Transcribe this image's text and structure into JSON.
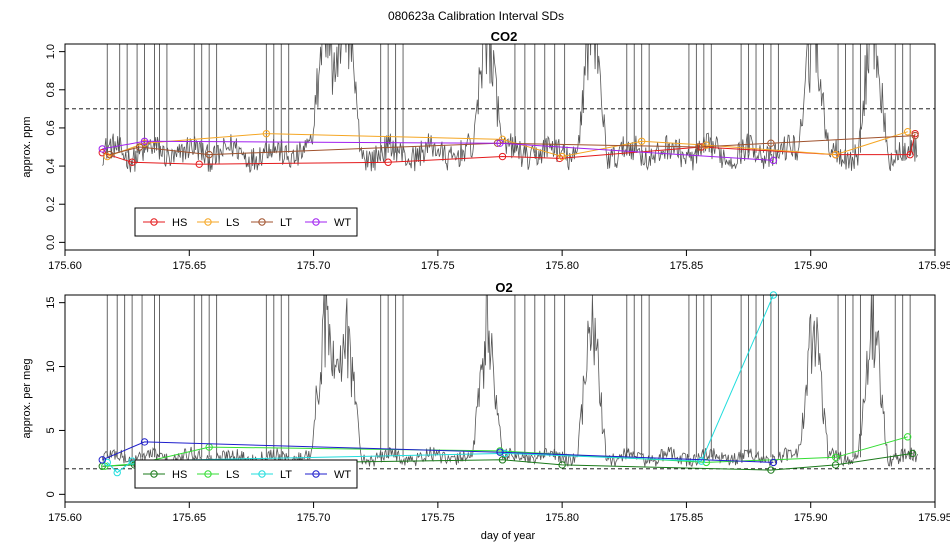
{
  "suptitle": "080623a   Calibration Interval SDs",
  "chart_data": [
    {
      "type": "line",
      "title": "CO2",
      "ylabel": "approx. ppm",
      "xlabel": "",
      "xlim": [
        175.6,
        175.95
      ],
      "ylim": [
        -0.04,
        1.04
      ],
      "xticks": [
        "175.60",
        "175.65",
        "175.70",
        "175.75",
        "175.80",
        "175.85",
        "175.90",
        "175.95"
      ],
      "yticks": [
        "0.0",
        "0.2",
        "0.4",
        "0.6",
        "0.8",
        "1.0"
      ],
      "threshold": 0.7,
      "grey_trace": {
        "color": "#555555",
        "x_start": 175.615,
        "x_end": 175.943,
        "base": 0.47,
        "noise": 0.07,
        "spikes": [
          175.617,
          175.622,
          175.625,
          175.629,
          175.632,
          175.636,
          175.638,
          175.641,
          175.652,
          175.655,
          175.658,
          175.661,
          175.681,
          175.684,
          175.687,
          175.69,
          175.727,
          175.73,
          175.733,
          175.736,
          175.781,
          175.785,
          175.789,
          175.793,
          175.797,
          175.801,
          175.826,
          175.829,
          175.832,
          175.835,
          175.851,
          175.854,
          175.857,
          175.86,
          175.872,
          175.875,
          175.878,
          175.881,
          175.884,
          175.887,
          175.911,
          175.914,
          175.917,
          175.92,
          175.934,
          175.937,
          175.94
        ],
        "bursts": [
          175.705,
          175.713,
          175.77,
          175.812,
          175.901,
          175.925
        ]
      },
      "series": [
        {
          "name": "HS",
          "color": "#e41a1c",
          "x": [
            175.615,
            175.627,
            175.654,
            175.73,
            175.776,
            175.799,
            175.856,
            175.91,
            175.94,
            175.942
          ],
          "y": [
            0.47,
            0.42,
            0.41,
            0.42,
            0.45,
            0.44,
            0.5,
            0.46,
            0.46,
            0.57
          ]
        },
        {
          "name": "LS",
          "color": "#f5a623",
          "x": [
            175.617,
            175.632,
            175.681,
            175.776,
            175.8,
            175.832,
            175.858,
            175.91,
            175.939
          ],
          "y": [
            0.45,
            0.52,
            0.57,
            0.54,
            0.45,
            0.53,
            0.51,
            0.46,
            0.58
          ]
        },
        {
          "name": "LT",
          "color": "#a0522d",
          "x": [
            175.618,
            175.63,
            175.658,
            175.774,
            175.855,
            175.884,
            175.942
          ],
          "y": [
            0.46,
            0.5,
            0.46,
            0.52,
            0.5,
            0.52,
            0.56
          ]
        },
        {
          "name": "WT",
          "color": "#a020f0",
          "x": [
            175.615,
            175.632,
            175.775,
            175.885
          ],
          "y": [
            0.49,
            0.53,
            0.52,
            0.43
          ]
        }
      ],
      "legend": {
        "entries": [
          "HS",
          "LS",
          "LT",
          "WT"
        ],
        "position": "bottom-left"
      }
    },
    {
      "type": "line",
      "title": "O2",
      "ylabel": "approx. per meg",
      "xlabel": "day of year",
      "xlim": [
        175.6,
        175.95
      ],
      "ylim": [
        -0.6,
        15.6
      ],
      "xticks": [
        "175.60",
        "175.65",
        "175.70",
        "175.75",
        "175.80",
        "175.85",
        "175.90",
        "175.95"
      ],
      "yticks": [
        "0",
        "5",
        "10",
        "15"
      ],
      "threshold": 2.0,
      "grey_trace": {
        "color": "#555555",
        "x_start": 175.615,
        "x_end": 175.943,
        "base": 2.9,
        "noise": 0.55,
        "spikes": [
          175.617,
          175.621,
          175.624,
          175.627,
          175.631,
          175.636,
          175.638,
          175.652,
          175.655,
          175.658,
          175.661,
          175.681,
          175.684,
          175.687,
          175.69,
          175.727,
          175.73,
          175.733,
          175.736,
          175.781,
          175.785,
          175.789,
          175.793,
          175.797,
          175.801,
          175.826,
          175.829,
          175.832,
          175.835,
          175.851,
          175.854,
          175.857,
          175.86,
          175.872,
          175.875,
          175.878,
          175.881,
          175.884,
          175.887,
          175.911,
          175.914,
          175.917,
          175.92,
          175.934,
          175.937,
          175.94
        ],
        "bursts": [
          175.705,
          175.713,
          175.77,
          175.812,
          175.901,
          175.925
        ]
      },
      "series": [
        {
          "name": "HS",
          "color": "#1a7a1a",
          "x": [
            175.615,
            175.628,
            175.776,
            175.8,
            175.884,
            175.91,
            175.941
          ],
          "y": [
            2.2,
            2.3,
            2.7,
            2.3,
            1.9,
            2.3,
            3.2
          ]
        },
        {
          "name": "LS",
          "color": "#33dd33",
          "x": [
            175.616,
            175.629,
            175.658,
            175.775,
            175.858,
            175.91,
            175.939
          ],
          "y": [
            2.2,
            2.4,
            3.7,
            3.4,
            2.5,
            2.9,
            4.5
          ]
        },
        {
          "name": "LT",
          "color": "#22dddd",
          "x": [
            175.617,
            175.621,
            175.627,
            175.777,
            175.856,
            175.885
          ],
          "y": [
            2.5,
            1.7,
            2.6,
            3.2,
            2.6,
            15.6
          ]
        },
        {
          "name": "WT",
          "color": "#1f1fcc",
          "x": [
            175.615,
            175.632,
            175.775,
            175.885
          ],
          "y": [
            2.7,
            4.1,
            3.3,
            2.5
          ]
        }
      ],
      "legend": {
        "entries": [
          "HS",
          "LS",
          "LT",
          "WT"
        ],
        "position": "bottom-left"
      }
    }
  ]
}
